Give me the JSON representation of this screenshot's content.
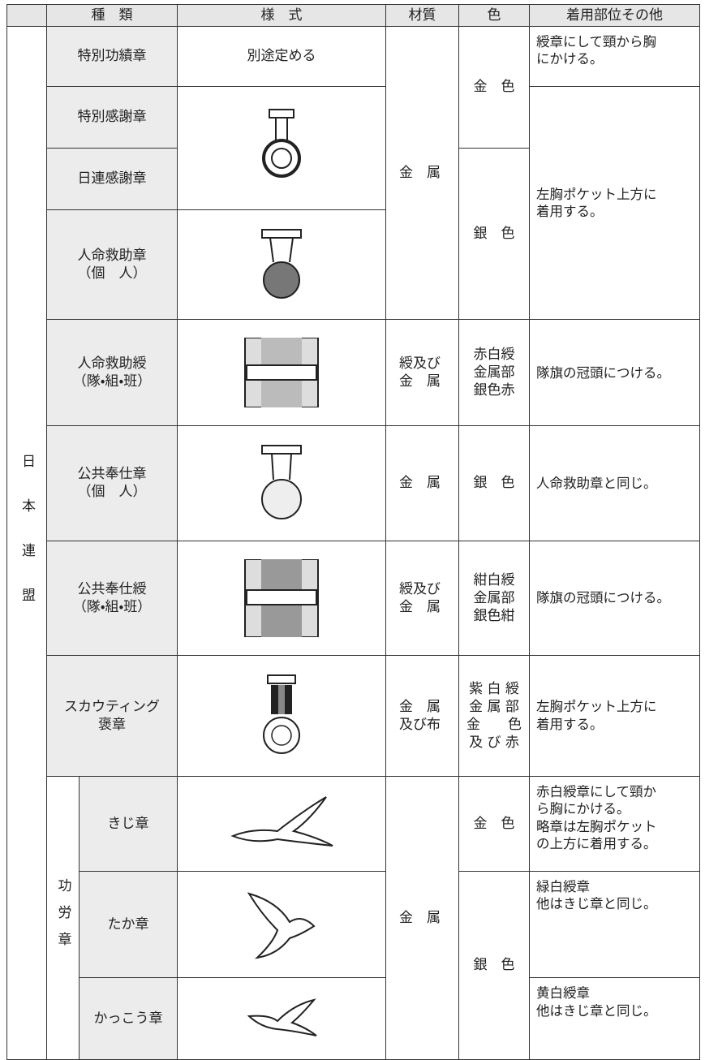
{
  "table": {
    "header": [
      "種　類",
      "様　式",
      "材質",
      "色",
      "着用部位その他"
    ],
    "group": "日本連盟",
    "subgroup": "功労章",
    "kinds": [
      "特別功績章",
      "特別感謝章",
      "日連感謝章",
      "人命救助章\n（個　人）",
      "人命救助綬\n（隊・組・班）",
      "公共奉仕章\n（個　人）",
      "公共奉仕綬\n（隊・組・班）",
      "スカウティング\n褒章",
      "きじ章",
      "たか章",
      "かっこう章"
    ],
    "style_text": "別途定める",
    "materials": [
      "金　属",
      "綬及び\n金　属",
      "金　属",
      "綬及び\n金　属",
      "金　属\n及び布",
      "金　属"
    ],
    "colors": [
      "金　色",
      "銀　色",
      "赤白綬\n金属部\n銀色赤",
      "銀　色",
      "紺白綬\n金属部\n銀色紺",
      "紫 白 綬\n金 属 部\n金　　色\n及 び 赤",
      "金　色",
      "銀　色"
    ],
    "usages": [
      "綬章にして頸から胸\nにかける。",
      "左胸ポケット上方に\n着用する。",
      "隊旗の冠頭につける。",
      "人命救助章と同じ。",
      "隊旗の冠頭につける。",
      "左胸ポケット上方に\n着用する。",
      "赤白綬章にして頸か\nら胸にかける。\n略章は左胸ポケット\nの上方に着用する。",
      "緑白綬章\n他はきじ章と同じ。",
      "黄白綬章\n他はきじ章と同じ。"
    ]
  }
}
